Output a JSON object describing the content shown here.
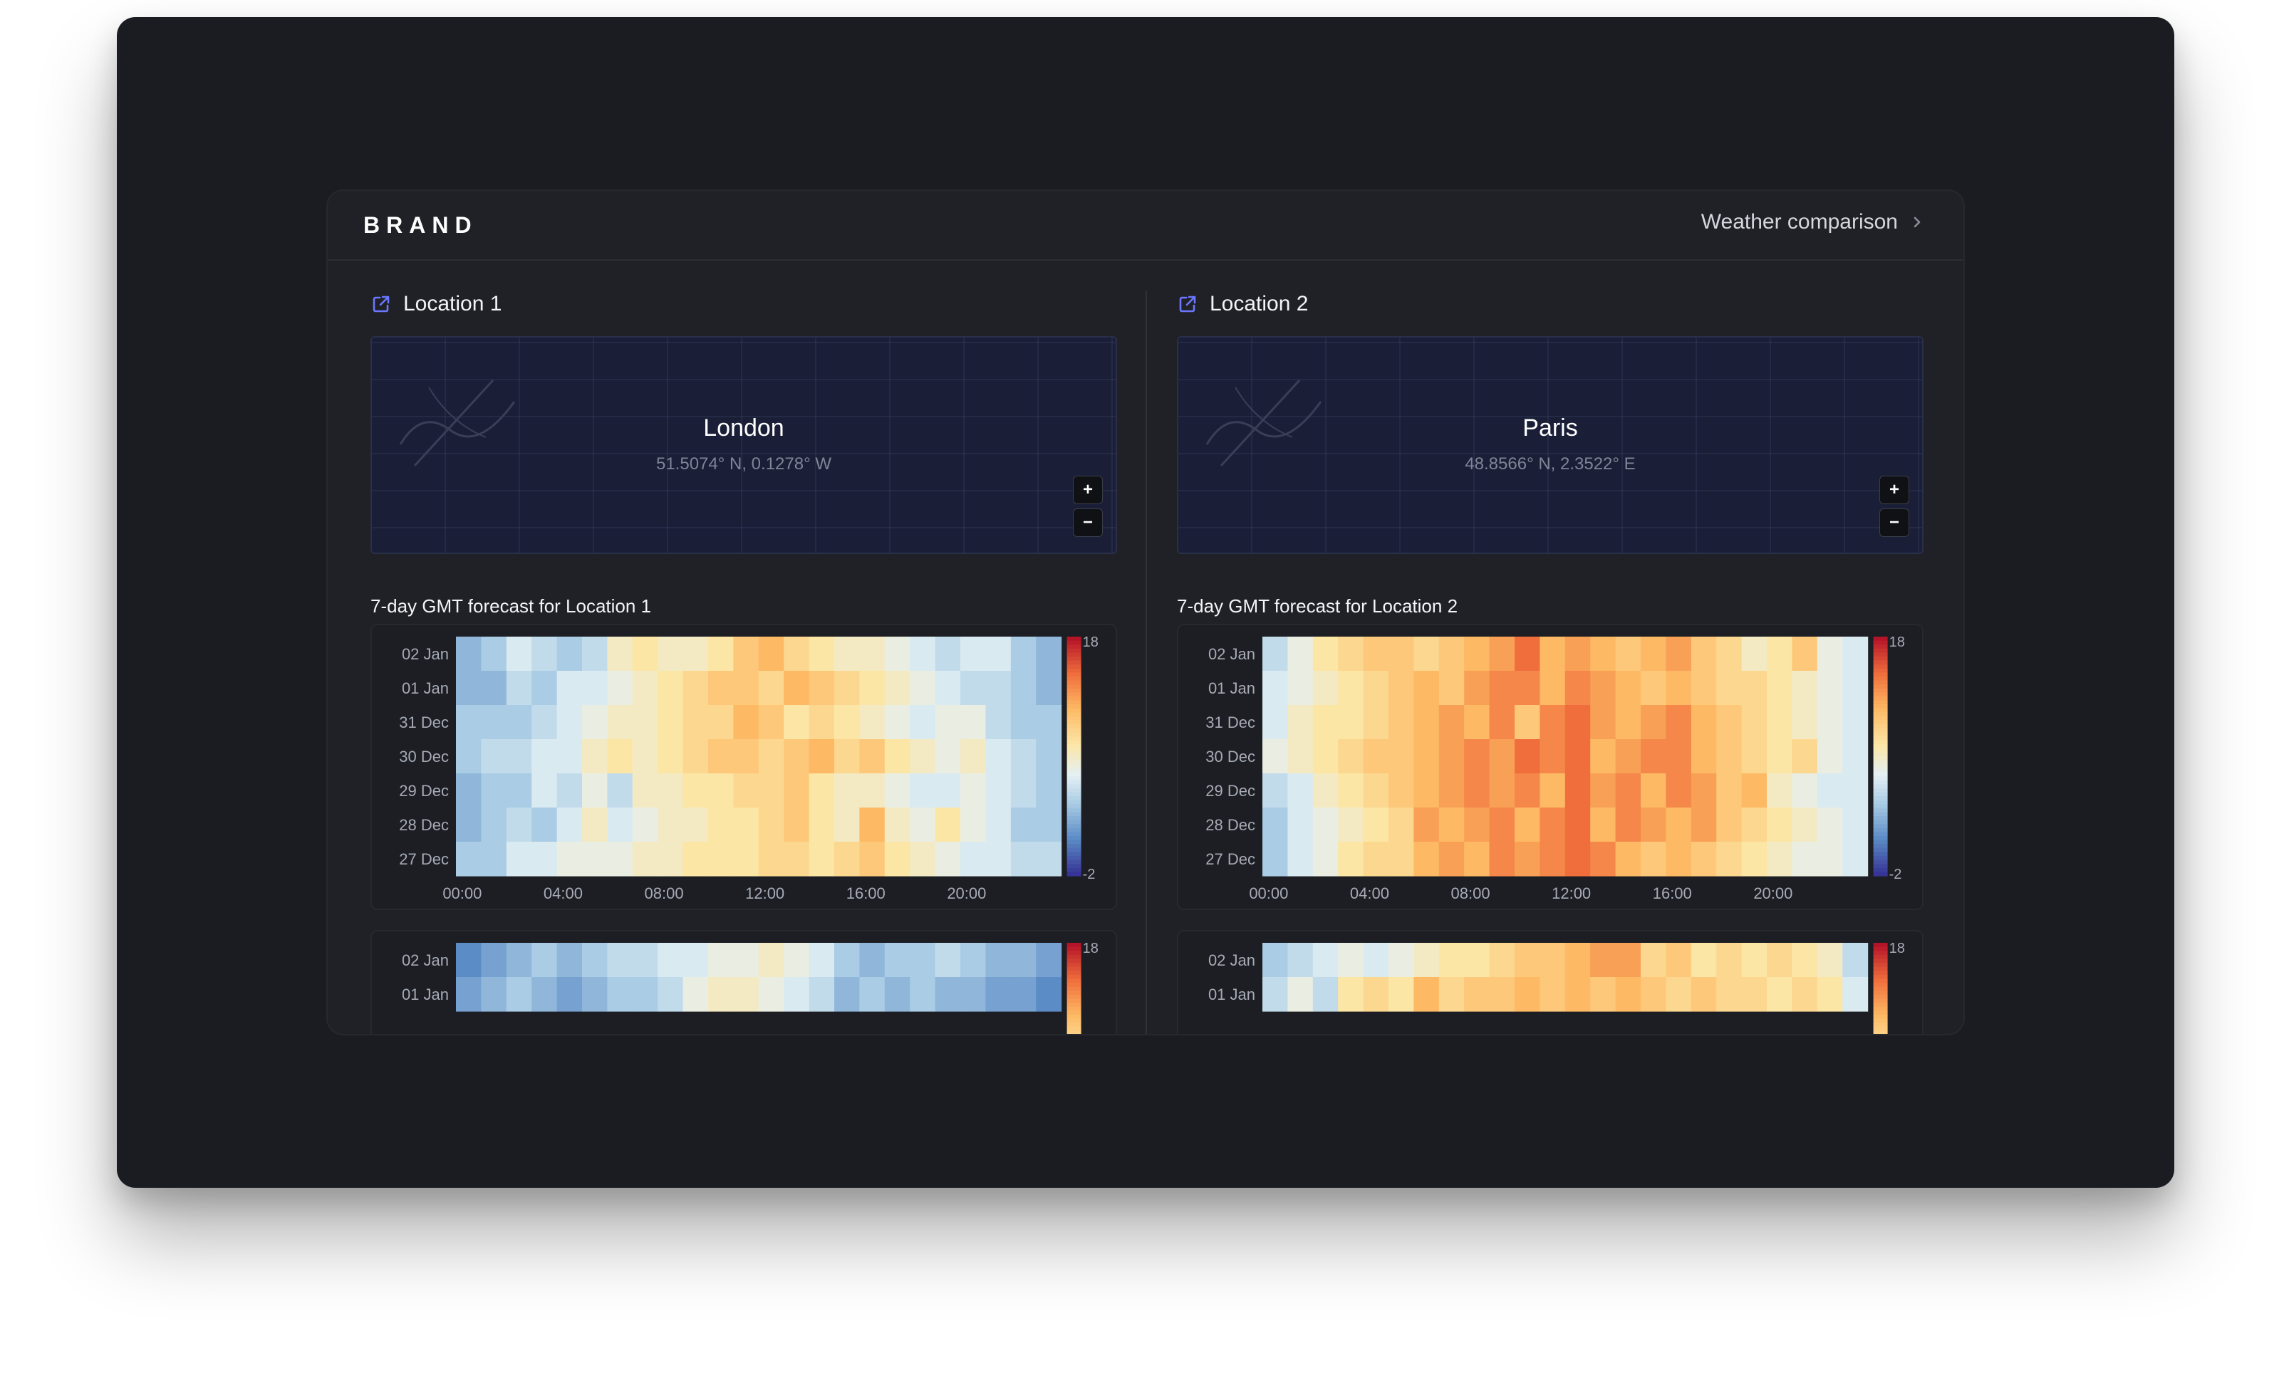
{
  "app": {
    "brand": "BRAND",
    "nav_link": "Weather comparison"
  },
  "locations": [
    {
      "heading": "Location 1",
      "map": {
        "city": "London",
        "coords": "51.5074° N, 0.1278° W",
        "zoom_in": "+",
        "zoom_out": "−"
      },
      "forecast_title": "7-day GMT forecast for Location 1"
    },
    {
      "heading": "Location 2",
      "map": {
        "city": "Paris",
        "coords": "48.8566° N, 2.3522° E",
        "zoom_in": "+",
        "zoom_out": "−"
      },
      "forecast_title": "7-day GMT forecast for Location 2"
    }
  ],
  "colors": {
    "accent": "#6b77ff",
    "window_bg": "#1a1c21",
    "panel_bg": "#1f2126",
    "map_bg": "#1a1f37"
  },
  "icons": {
    "external_link": "external-link-icon",
    "chevron": "chevron-right-icon",
    "map_sketch": "map-sketch-icon"
  },
  "chart_data": [
    {
      "type": "heatmap",
      "title": "7-day GMT forecast for Location 1",
      "y_categories": [
        "02 Jan",
        "01 Jan",
        "31 Dec",
        "30 Dec",
        "29 Dec",
        "28 Dec",
        "27 Dec"
      ],
      "x_tick_labels": [
        "00:00",
        "04:00",
        "08:00",
        "12:00",
        "16:00",
        "20:00"
      ],
      "x_hours": [
        0,
        1,
        2,
        3,
        4,
        5,
        6,
        7,
        8,
        9,
        10,
        11,
        12,
        13,
        14,
        15,
        16,
        17,
        18,
        19,
        20,
        21,
        22,
        23
      ],
      "colorbar": {
        "min": -2,
        "max": 18,
        "min_label": "-2",
        "max_label": "18"
      },
      "values": [
        [
          3,
          4,
          6,
          5,
          4,
          5,
          8,
          9,
          8,
          8,
          9,
          11,
          12,
          10,
          9,
          8,
          8,
          7,
          6,
          5,
          6,
          6,
          4,
          3
        ],
        [
          3,
          3,
          5,
          4,
          6,
          6,
          7,
          8,
          9,
          10,
          11,
          11,
          10,
          12,
          11,
          10,
          9,
          8,
          7,
          6,
          5,
          5,
          4,
          3
        ],
        [
          4,
          4,
          4,
          5,
          6,
          7,
          8,
          8,
          9,
          10,
          10,
          12,
          11,
          9,
          10,
          9,
          8,
          7,
          6,
          7,
          7,
          5,
          4,
          4
        ],
        [
          4,
          5,
          5,
          6,
          6,
          8,
          9,
          8,
          9,
          10,
          11,
          11,
          10,
          11,
          12,
          10,
          11,
          9,
          8,
          7,
          8,
          6,
          5,
          4
        ],
        [
          3,
          4,
          4,
          6,
          5,
          7,
          5,
          8,
          8,
          9,
          9,
          10,
          10,
          11,
          9,
          8,
          8,
          7,
          6,
          6,
          7,
          6,
          5,
          4
        ],
        [
          3,
          4,
          5,
          4,
          6,
          8,
          6,
          7,
          8,
          8,
          9,
          9,
          10,
          11,
          9,
          8,
          12,
          8,
          7,
          9,
          7,
          6,
          4,
          4
        ],
        [
          4,
          4,
          6,
          6,
          7,
          7,
          7,
          8,
          8,
          9,
          9,
          9,
          10,
          10,
          9,
          10,
          11,
          9,
          8,
          7,
          6,
          6,
          5,
          5
        ]
      ]
    },
    {
      "type": "heatmap",
      "title": "7-day GMT forecast for Location 2",
      "y_categories": [
        "02 Jan",
        "01 Jan",
        "31 Dec",
        "30 Dec",
        "29 Dec",
        "28 Dec",
        "27 Dec"
      ],
      "x_tick_labels": [
        "00:00",
        "04:00",
        "08:00",
        "12:00",
        "16:00",
        "20:00"
      ],
      "x_hours": [
        0,
        1,
        2,
        3,
        4,
        5,
        6,
        7,
        8,
        9,
        10,
        11,
        12,
        13,
        14,
        15,
        16,
        17,
        18,
        19,
        20,
        21,
        22,
        23
      ],
      "colorbar": {
        "min": -2,
        "max": 18,
        "min_label": "-2",
        "max_label": "18"
      },
      "values": [
        [
          5,
          7,
          9,
          10,
          11,
          11,
          10,
          11,
          12,
          13,
          15,
          12,
          13,
          12,
          11,
          12,
          13,
          11,
          10,
          8,
          9,
          11,
          7,
          6
        ],
        [
          6,
          7,
          8,
          9,
          10,
          11,
          12,
          11,
          13,
          14,
          14,
          12,
          14,
          13,
          12,
          11,
          12,
          11,
          10,
          10,
          9,
          8,
          7,
          6
        ],
        [
          6,
          8,
          9,
          9,
          10,
          11,
          12,
          13,
          12,
          14,
          11,
          14,
          15,
          13,
          12,
          13,
          14,
          12,
          11,
          10,
          9,
          8,
          7,
          6
        ],
        [
          7,
          8,
          9,
          10,
          11,
          11,
          12,
          13,
          14,
          13,
          15,
          14,
          15,
          12,
          13,
          14,
          14,
          12,
          11,
          10,
          9,
          10,
          7,
          6
        ],
        [
          5,
          6,
          8,
          9,
          10,
          11,
          12,
          13,
          14,
          13,
          14,
          12,
          15,
          13,
          14,
          12,
          14,
          13,
          11,
          12,
          8,
          7,
          6,
          6
        ],
        [
          4,
          6,
          7,
          8,
          9,
          10,
          13,
          12,
          13,
          14,
          12,
          14,
          15,
          12,
          14,
          13,
          12,
          13,
          11,
          10,
          9,
          8,
          7,
          6
        ],
        [
          4,
          6,
          7,
          9,
          10,
          10,
          12,
          13,
          12,
          14,
          13,
          14,
          15,
          14,
          12,
          11,
          12,
          11,
          10,
          9,
          8,
          7,
          7,
          6
        ]
      ]
    },
    {
      "type": "heatmap",
      "y_categories": [
        "02 Jan",
        "01 Jan"
      ],
      "colorbar": {
        "min": -2,
        "max": 18,
        "max_label": "18"
      },
      "values": [
        [
          1,
          2,
          3,
          4,
          3,
          4,
          5,
          5,
          6,
          6,
          7,
          7,
          8,
          7,
          6,
          4,
          3,
          4,
          4,
          5,
          4,
          3,
          3,
          2
        ],
        [
          2,
          3,
          4,
          3,
          2,
          3,
          4,
          4,
          5,
          7,
          8,
          8,
          7,
          6,
          5,
          3,
          4,
          3,
          4,
          3,
          3,
          2,
          2,
          1
        ]
      ]
    },
    {
      "type": "heatmap",
      "y_categories": [
        "02 Jan",
        "01 Jan"
      ],
      "colorbar": {
        "min": -2,
        "max": 18,
        "max_label": "18"
      },
      "values": [
        [
          4,
          5,
          6,
          7,
          6,
          7,
          8,
          9,
          9,
          10,
          11,
          11,
          12,
          13,
          13,
          10,
          11,
          9,
          10,
          9,
          10,
          9,
          8,
          5
        ],
        [
          5,
          7,
          5,
          9,
          10,
          9,
          12,
          10,
          11,
          11,
          12,
          11,
          12,
          11,
          12,
          11,
          10,
          11,
          10,
          10,
          9,
          10,
          9,
          6
        ]
      ]
    }
  ]
}
